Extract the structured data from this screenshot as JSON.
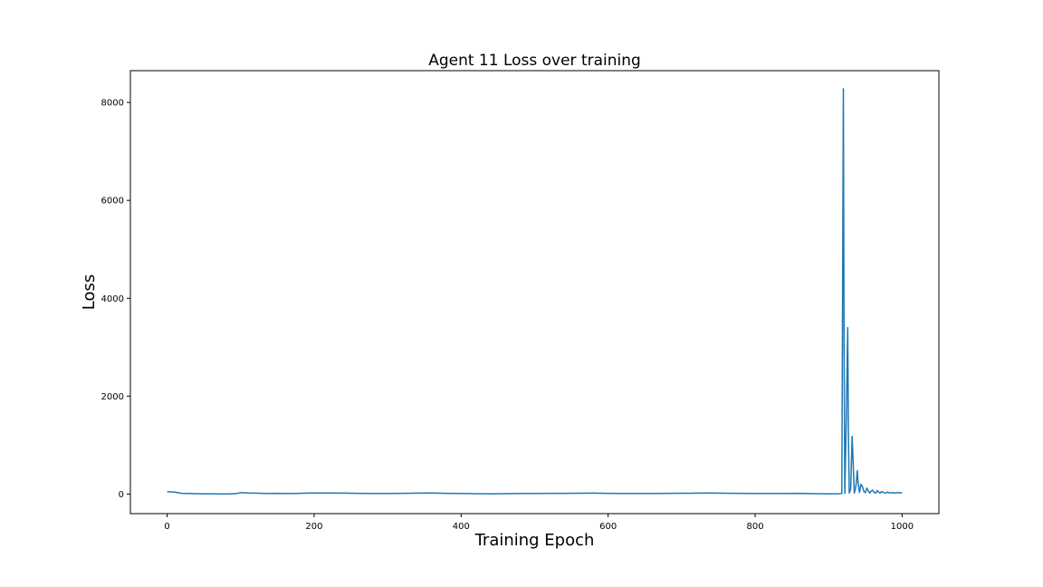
{
  "chart_data": {
    "type": "line",
    "title": "Agent 11 Loss over training",
    "xlabel": "Training Epoch",
    "ylabel": "Loss",
    "xlim": [
      -50,
      1050
    ],
    "ylim": [
      -400,
      8650
    ],
    "xticks": [
      0,
      200,
      400,
      600,
      800,
      1000
    ],
    "yticks": [
      0,
      2000,
      4000,
      6000,
      8000
    ],
    "grid": false,
    "legend": "none",
    "line_color": "#1f77b4",
    "series": [
      {
        "x": [
          0,
          10,
          20,
          30,
          40,
          50,
          60,
          70,
          80,
          90,
          95,
          100,
          110,
          120,
          130,
          140,
          150,
          160,
          170,
          180,
          190,
          200,
          220,
          240,
          260,
          280,
          300,
          320,
          340,
          360,
          380,
          400,
          420,
          440,
          460,
          480,
          500,
          520,
          540,
          560,
          580,
          600,
          620,
          640,
          660,
          680,
          700,
          720,
          740,
          760,
          780,
          800,
          820,
          840,
          860,
          880,
          900,
          910,
          915,
          918,
          920,
          921,
          922,
          924,
          926,
          927,
          928,
          930,
          932,
          933,
          935,
          937,
          939,
          940,
          942,
          944,
          946,
          948,
          950,
          952,
          954,
          956,
          958,
          960,
          962,
          964,
          966,
          968,
          970,
          972,
          975,
          978,
          980,
          983,
          986,
          990,
          995,
          1000
        ],
        "y": [
          50,
          40,
          15,
          10,
          8,
          6,
          5,
          4,
          3,
          5,
          10,
          30,
          20,
          18,
          15,
          12,
          14,
          12,
          10,
          14,
          18,
          20,
          22,
          18,
          14,
          12,
          10,
          14,
          18,
          20,
          15,
          10,
          8,
          6,
          8,
          10,
          12,
          14,
          15,
          16,
          18,
          14,
          12,
          10,
          12,
          14,
          16,
          18,
          20,
          16,
          14,
          12,
          10,
          12,
          14,
          8,
          5,
          5,
          8,
          10,
          8280,
          3000,
          10,
          1500,
          3400,
          1200,
          20,
          100,
          1180,
          800,
          20,
          150,
          480,
          250,
          30,
          200,
          150,
          50,
          30,
          120,
          60,
          20,
          60,
          80,
          30,
          20,
          70,
          40,
          20,
          50,
          30,
          20,
          40,
          20,
          30,
          20,
          30,
          20
        ]
      }
    ]
  }
}
